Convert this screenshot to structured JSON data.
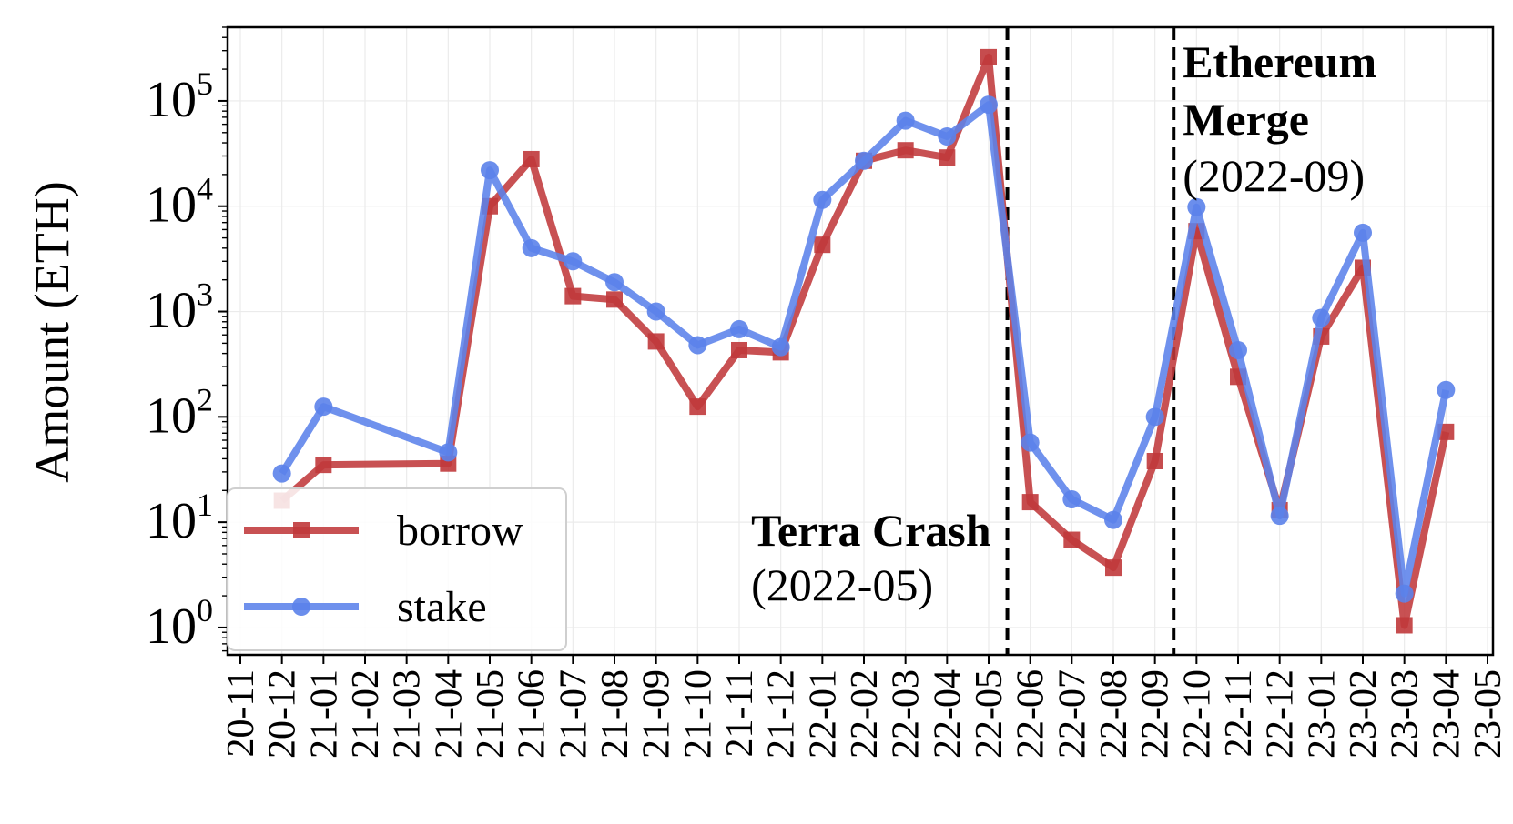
{
  "chart_data": {
    "type": "line",
    "ylabel": "Amount (ETH)",
    "xlabel": "",
    "yscale": "log",
    "ylim": [
      0.55,
      500000
    ],
    "grid": true,
    "legend_position": "lower-left",
    "x": [
      "20-11",
      "20-12",
      "21-01",
      "21-02",
      "21-03",
      "21-04",
      "21-05",
      "21-06",
      "21-07",
      "21-08",
      "21-09",
      "21-10",
      "21-11",
      "21-12",
      "22-01",
      "22-02",
      "22-03",
      "22-04",
      "22-05",
      "22-06",
      "22-07",
      "22-08",
      "22-09",
      "22-10",
      "22-11",
      "22-12",
      "23-01",
      "23-02",
      "23-03",
      "23-04",
      "23-05"
    ],
    "y_ticks": [
      {
        "value": 1,
        "base": "10",
        "exp": "0"
      },
      {
        "value": 10,
        "base": "10",
        "exp": "1"
      },
      {
        "value": 100,
        "base": "10",
        "exp": "2"
      },
      {
        "value": 1000,
        "base": "10",
        "exp": "3"
      },
      {
        "value": 10000,
        "base": "10",
        "exp": "4"
      },
      {
        "value": 100000,
        "base": "10",
        "exp": "5"
      }
    ],
    "series": [
      {
        "name": "borrow",
        "color": "#c0393b",
        "marker": "square",
        "points": [
          [
            "20-12",
            16
          ],
          [
            "21-01",
            35
          ],
          [
            "21-04",
            36
          ],
          [
            "21-05",
            10000
          ],
          [
            "21-06",
            28000
          ],
          [
            "21-07",
            1400
          ],
          [
            "21-08",
            1300
          ],
          [
            "21-09",
            520
          ],
          [
            "21-10",
            125
          ],
          [
            "21-11",
            430
          ],
          [
            "21-12",
            410
          ],
          [
            "22-01",
            4300
          ],
          [
            "22-02",
            27000
          ],
          [
            "22-03",
            34000
          ],
          [
            "22-04",
            29000
          ],
          [
            "22-05",
            260000
          ],
          [
            "22-06",
            15.5
          ],
          [
            "22-07",
            6.8
          ],
          [
            "22-08",
            3.7
          ],
          [
            "22-09",
            38
          ],
          [
            "22-10",
            5800
          ],
          [
            "22-11",
            240
          ],
          [
            "22-12",
            13
          ],
          [
            "23-01",
            580
          ],
          [
            "23-02",
            2600
          ],
          [
            "23-03",
            1.05
          ],
          [
            "23-04",
            72
          ]
        ]
      },
      {
        "name": "stake",
        "color": "#5b82ea",
        "marker": "circle",
        "points": [
          [
            "20-12",
            29
          ],
          [
            "21-01",
            125
          ],
          [
            "21-04",
            46
          ],
          [
            "21-05",
            22000
          ],
          [
            "21-06",
            4000
          ],
          [
            "21-07",
            3000
          ],
          [
            "21-08",
            1900
          ],
          [
            "21-09",
            1000
          ],
          [
            "21-10",
            480
          ],
          [
            "21-11",
            680
          ],
          [
            "21-12",
            460
          ],
          [
            "22-01",
            11500
          ],
          [
            "22-02",
            27000
          ],
          [
            "22-03",
            65000
          ],
          [
            "22-04",
            46000
          ],
          [
            "22-05",
            92000
          ],
          [
            "22-06",
            57
          ],
          [
            "22-07",
            16.5
          ],
          [
            "22-08",
            10.5
          ],
          [
            "22-09",
            100
          ],
          [
            "22-10",
            9800
          ],
          [
            "22-11",
            430
          ],
          [
            "22-12",
            11.5
          ],
          [
            "23-01",
            870
          ],
          [
            "23-02",
            5600
          ],
          [
            "23-03",
            2.1
          ],
          [
            "23-04",
            180
          ]
        ]
      }
    ],
    "vlines": [
      {
        "x_after": "22-05",
        "frac": 0.45,
        "bold": "Terra Crash",
        "bold2": "",
        "date": "(2022-05)",
        "side": "left"
      },
      {
        "x_after": "22-09",
        "frac": 0.45,
        "bold": "Ethereum",
        "bold2": "Merge",
        "date": "(2022-09)",
        "side": "right"
      }
    ]
  }
}
